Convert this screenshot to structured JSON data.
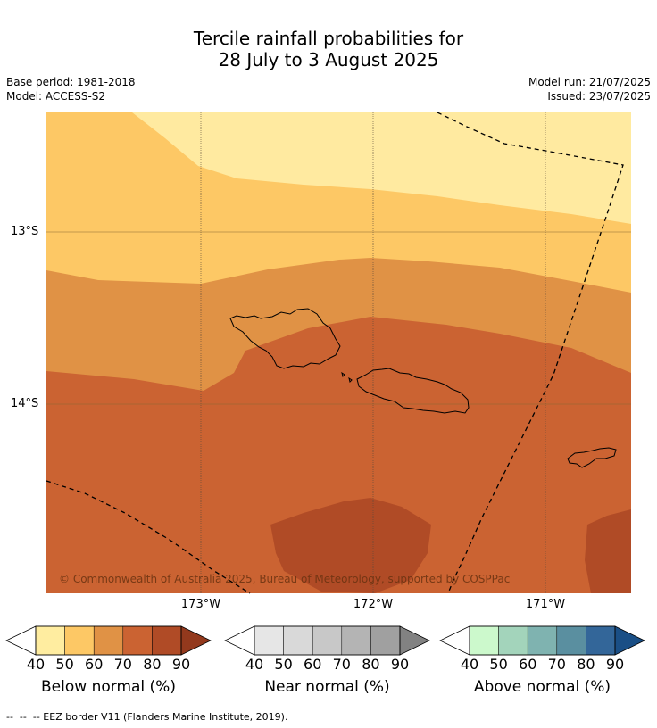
{
  "title": {
    "line1": "Tercile rainfall probabilities for",
    "line2": "28 July to 3 August 2025"
  },
  "meta": {
    "base_period": "Base period: 1981-2018",
    "model": "Model: ACCESS-S2",
    "model_run": "Model run: 21/07/2025",
    "issued": "Issued: 23/07/2025"
  },
  "map": {
    "lat_labels": [
      "13°S",
      "14°S"
    ],
    "lon_labels": [
      "173°W",
      "172°W",
      "171°W"
    ],
    "copyright": "© Commonwealth of Australia 2025, Bureau of Meteorology, supported by COSPPac",
    "colors": {
      "below_40": "#ffeaa0",
      "below_50": "#fdc865",
      "below_60": "#e09245",
      "below_70": "#cb6332",
      "below_80": "#b04b26"
    }
  },
  "legends": [
    {
      "title": "Below normal (%)",
      "ticks": [
        "40",
        "50",
        "60",
        "70",
        "80",
        "90"
      ],
      "colors": [
        "#ffeda0",
        "#fdc865",
        "#e09245",
        "#cb6332",
        "#b04b26",
        "#93391d"
      ]
    },
    {
      "title": "Near normal (%)",
      "ticks": [
        "40",
        "50",
        "60",
        "70",
        "80",
        "90"
      ],
      "colors": [
        "#e6e6e6",
        "#d9d9d9",
        "#c8c8c8",
        "#b4b4b4",
        "#a0a0a0",
        "#828282"
      ]
    },
    {
      "title": "Above normal (%)",
      "ticks": [
        "40",
        "50",
        "60",
        "70",
        "80",
        "90"
      ],
      "colors": [
        "#ccf9cc",
        "#a3d4bb",
        "#7fb3b0",
        "#5a8fa0",
        "#336699",
        "#1a4f86"
      ]
    }
  ],
  "footnote": "--  --  -- EEZ border V11 (Flanders Marine Institute, 2019)."
}
